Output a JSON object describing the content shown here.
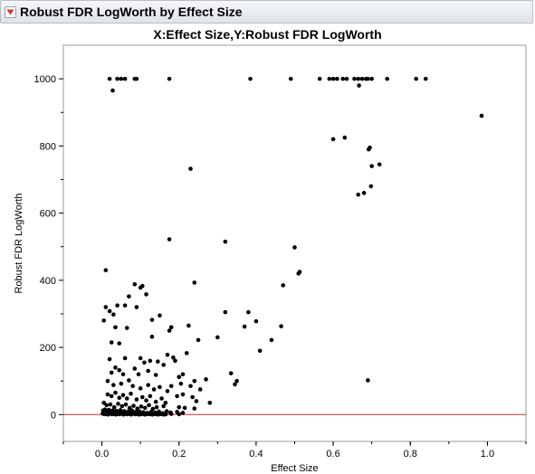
{
  "report": {
    "title": "Robust FDR LogWorth by Effect Size",
    "disclosure_icon": "red-down-triangle-icon"
  },
  "colors": {
    "reference_line": "#c0302a",
    "points": "#000000",
    "frame": "#9a9a9a",
    "header_bg": "#e6eaef"
  },
  "chart_data": {
    "type": "scatter",
    "title": "X:Effect Size,Y:Robust FDR LogWorth",
    "xlabel": "Effect Size",
    "ylabel": "Robust FDR LogWorth",
    "xlim": [
      -0.1,
      1.1
    ],
    "ylim": [
      -80,
      1100
    ],
    "xticks": [
      "0.0",
      "0.2",
      "0.4",
      "0.6",
      "0.8",
      "1.0"
    ],
    "xtick_values": [
      0.0,
      0.2,
      0.4,
      0.6,
      0.8,
      1.0
    ],
    "yticks": [
      "0",
      "200",
      "400",
      "600",
      "800",
      "1000"
    ],
    "ytick_values": [
      0,
      200,
      400,
      600,
      800,
      1000
    ],
    "grid": false,
    "reference_line_y": 0,
    "points": [
      [
        0.02,
        1000
      ],
      [
        0.04,
        1000
      ],
      [
        0.05,
        1000
      ],
      [
        0.06,
        1000
      ],
      [
        0.085,
        1000
      ],
      [
        0.09,
        1000
      ],
      [
        0.175,
        1000
      ],
      [
        0.385,
        1000
      ],
      [
        0.49,
        1000
      ],
      [
        0.565,
        1000
      ],
      [
        0.59,
        1000
      ],
      [
        0.6,
        1000
      ],
      [
        0.61,
        1000
      ],
      [
        0.625,
        1000
      ],
      [
        0.635,
        1000
      ],
      [
        0.655,
        1000
      ],
      [
        0.665,
        1000
      ],
      [
        0.675,
        1000
      ],
      [
        0.685,
        1000
      ],
      [
        0.69,
        1000
      ],
      [
        0.7,
        1000
      ],
      [
        0.74,
        1000
      ],
      [
        0.815,
        1000
      ],
      [
        0.84,
        1000
      ],
      [
        0.028,
        965
      ],
      [
        0.667,
        980
      ],
      [
        0.985,
        890
      ],
      [
        0.6,
        820
      ],
      [
        0.63,
        825
      ],
      [
        0.695,
        795
      ],
      [
        0.692,
        790
      ],
      [
        0.72,
        745
      ],
      [
        0.7,
        740
      ],
      [
        0.698,
        680
      ],
      [
        0.68,
        660
      ],
      [
        0.665,
        655
      ],
      [
        0.23,
        732
      ],
      [
        0.175,
        522
      ],
      [
        0.32,
        515
      ],
      [
        0.5,
        498
      ],
      [
        0.51,
        420
      ],
      [
        0.513,
        425
      ],
      [
        0.47,
        385
      ],
      [
        0.01,
        430
      ],
      [
        0.085,
        388
      ],
      [
        0.1,
        378
      ],
      [
        0.105,
        383
      ],
      [
        0.07,
        352
      ],
      [
        0.115,
        358
      ],
      [
        0.24,
        393
      ],
      [
        0.04,
        325
      ],
      [
        0.06,
        325
      ],
      [
        0.02,
        308
      ],
      [
        0.03,
        298
      ],
      [
        0.09,
        320
      ],
      [
        0.005,
        280
      ],
      [
        0.01,
        320
      ],
      [
        0.13,
        282
      ],
      [
        0.15,
        295
      ],
      [
        0.035,
        260
      ],
      [
        0.065,
        258
      ],
      [
        0.18,
        260
      ],
      [
        0.175,
        250
      ],
      [
        0.225,
        265
      ],
      [
        0.025,
        215
      ],
      [
        0.045,
        212
      ],
      [
        0.13,
        232
      ],
      [
        0.32,
        305
      ],
      [
        0.38,
        305
      ],
      [
        0.4,
        278
      ],
      [
        0.37,
        262
      ],
      [
        0.465,
        263
      ],
      [
        0.25,
        222
      ],
      [
        0.3,
        230
      ],
      [
        0.44,
        222
      ],
      [
        0.41,
        190
      ],
      [
        0.02,
        165
      ],
      [
        0.06,
        168
      ],
      [
        0.1,
        168
      ],
      [
        0.11,
        155
      ],
      [
        0.125,
        160
      ],
      [
        0.16,
        148
      ],
      [
        0.145,
        158
      ],
      [
        0.19,
        160
      ],
      [
        0.185,
        170
      ],
      [
        0.17,
        178
      ],
      [
        0.22,
        183
      ],
      [
        0.12,
        130
      ],
      [
        0.025,
        125
      ],
      [
        0.035,
        140
      ],
      [
        0.045,
        132
      ],
      [
        0.055,
        120
      ],
      [
        0.085,
        137
      ],
      [
        0.095,
        120
      ],
      [
        0.14,
        118
      ],
      [
        0.2,
        112
      ],
      [
        0.21,
        120
      ],
      [
        0.24,
        100
      ],
      [
        0.27,
        105
      ],
      [
        0.335,
        123
      ],
      [
        0.35,
        100
      ],
      [
        0.345,
        90
      ],
      [
        0.69,
        102
      ],
      [
        0.015,
        100
      ],
      [
        0.03,
        88
      ],
      [
        0.05,
        92
      ],
      [
        0.07,
        102
      ],
      [
        0.08,
        85
      ],
      [
        0.1,
        78
      ],
      [
        0.12,
        88
      ],
      [
        0.135,
        75
      ],
      [
        0.15,
        82
      ],
      [
        0.17,
        70
      ],
      [
        0.18,
        85
      ],
      [
        0.205,
        92
      ],
      [
        0.23,
        85
      ],
      [
        0.255,
        75
      ],
      [
        0.015,
        60
      ],
      [
        0.025,
        55
      ],
      [
        0.035,
        65
      ],
      [
        0.045,
        50
      ],
      [
        0.055,
        58
      ],
      [
        0.065,
        48
      ],
      [
        0.075,
        62
      ],
      [
        0.09,
        45
      ],
      [
        0.105,
        52
      ],
      [
        0.115,
        42
      ],
      [
        0.125,
        55
      ],
      [
        0.14,
        38
      ],
      [
        0.155,
        48
      ],
      [
        0.165,
        35
      ],
      [
        0.195,
        55
      ],
      [
        0.21,
        60
      ],
      [
        0.235,
        52
      ],
      [
        0.245,
        40
      ],
      [
        0.28,
        35
      ],
      [
        0.005,
        35
      ],
      [
        0.012,
        28
      ],
      [
        0.022,
        30
      ],
      [
        0.032,
        22
      ],
      [
        0.042,
        32
      ],
      [
        0.052,
        25
      ],
      [
        0.062,
        30
      ],
      [
        0.072,
        20
      ],
      [
        0.082,
        26
      ],
      [
        0.092,
        18
      ],
      [
        0.102,
        24
      ],
      [
        0.112,
        20
      ],
      [
        0.122,
        28
      ],
      [
        0.132,
        17
      ],
      [
        0.142,
        22
      ],
      [
        0.16,
        25
      ],
      [
        0.2,
        22
      ],
      [
        0.215,
        20
      ],
      [
        0.24,
        18
      ],
      [
        0.003,
        12
      ],
      [
        0.008,
        15
      ],
      [
        0.013,
        8
      ],
      [
        0.018,
        14
      ],
      [
        0.023,
        10
      ],
      [
        0.028,
        12
      ],
      [
        0.033,
        6
      ],
      [
        0.038,
        11
      ],
      [
        0.043,
        8
      ],
      [
        0.048,
        13
      ],
      [
        0.053,
        7
      ],
      [
        0.058,
        10
      ],
      [
        0.063,
        5
      ],
      [
        0.068,
        9
      ],
      [
        0.073,
        6
      ],
      [
        0.078,
        12
      ],
      [
        0.083,
        5
      ],
      [
        0.088,
        8
      ],
      [
        0.093,
        4
      ],
      [
        0.098,
        9
      ],
      [
        0.108,
        7
      ],
      [
        0.118,
        5
      ],
      [
        0.128,
        8
      ],
      [
        0.138,
        6
      ],
      [
        0.148,
        9
      ],
      [
        0.158,
        4
      ],
      [
        0.168,
        10
      ],
      [
        0.178,
        6
      ],
      [
        0.195,
        8
      ],
      [
        0.21,
        5
      ],
      [
        0.002,
        3
      ],
      [
        0.006,
        1
      ],
      [
        0.011,
        2
      ],
      [
        0.016,
        0
      ],
      [
        0.021,
        3
      ],
      [
        0.026,
        1
      ],
      [
        0.031,
        2
      ],
      [
        0.036,
        0
      ],
      [
        0.041,
        2
      ],
      [
        0.046,
        1
      ],
      [
        0.051,
        3
      ],
      [
        0.056,
        0
      ],
      [
        0.061,
        2
      ],
      [
        0.066,
        1
      ],
      [
        0.071,
        2
      ],
      [
        0.076,
        0
      ],
      [
        0.081,
        3
      ],
      [
        0.086,
        1
      ],
      [
        0.091,
        2
      ],
      [
        0.096,
        0
      ],
      [
        0.101,
        1
      ],
      [
        0.106,
        2
      ],
      [
        0.111,
        0
      ],
      [
        0.116,
        1
      ],
      [
        0.121,
        2
      ],
      [
        0.126,
        1
      ],
      [
        0.131,
        0
      ],
      [
        0.136,
        2
      ],
      [
        0.141,
        1
      ],
      [
        0.146,
        0
      ],
      [
        0.151,
        2
      ],
      [
        0.156,
        1
      ],
      [
        0.161,
        0
      ],
      [
        0.166,
        1
      ],
      [
        0.18,
        2
      ],
      [
        0.2,
        1
      ]
    ]
  }
}
